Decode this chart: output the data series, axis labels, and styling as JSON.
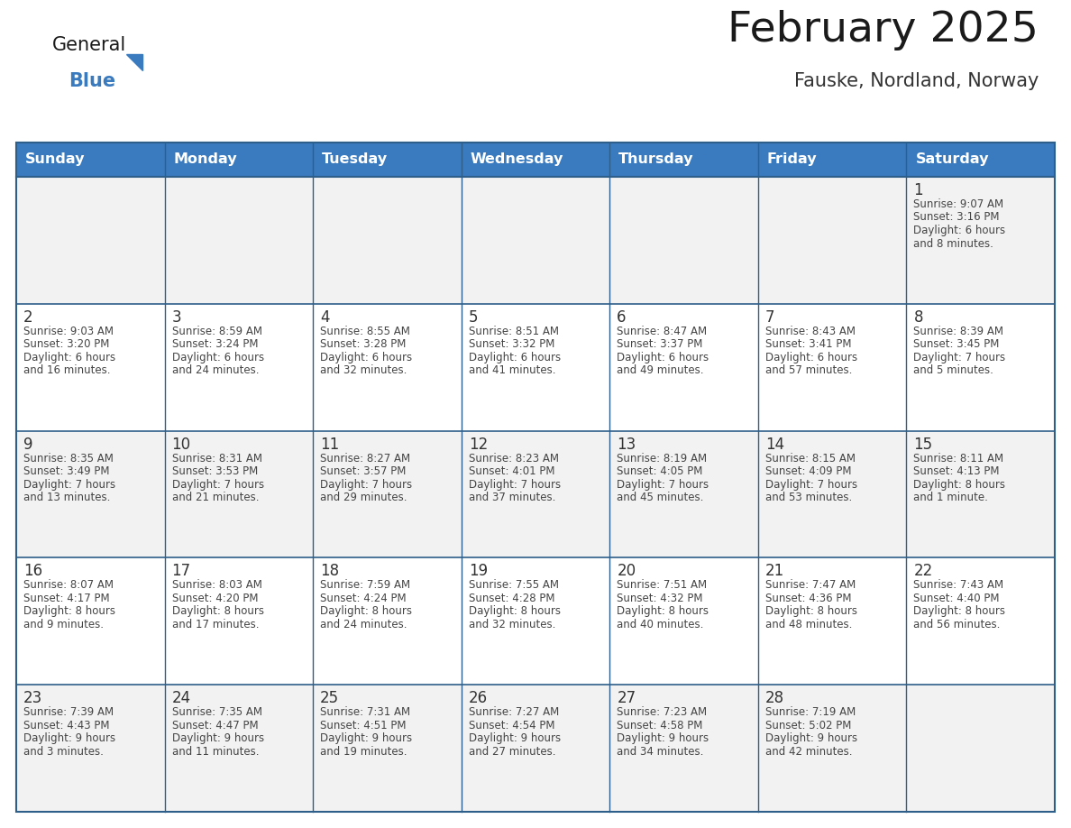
{
  "title": "February 2025",
  "subtitle": "Fauske, Nordland, Norway",
  "header_bg": "#3a7abf",
  "header_text": "#ffffff",
  "header_days": [
    "Sunday",
    "Monday",
    "Tuesday",
    "Wednesday",
    "Thursday",
    "Friday",
    "Saturday"
  ],
  "cell_bg_even": "#f2f2f2",
  "cell_bg_odd": "#ffffff",
  "border_color": "#2e5f8a",
  "day_number_color": "#333333",
  "info_text_color": "#444444",
  "title_color": "#1a1a1a",
  "subtitle_color": "#333333",
  "calendar": [
    [
      null,
      null,
      null,
      null,
      null,
      null,
      1
    ],
    [
      2,
      3,
      4,
      5,
      6,
      7,
      8
    ],
    [
      9,
      10,
      11,
      12,
      13,
      14,
      15
    ],
    [
      16,
      17,
      18,
      19,
      20,
      21,
      22
    ],
    [
      23,
      24,
      25,
      26,
      27,
      28,
      null
    ]
  ],
  "day_info": {
    "1": [
      "Sunrise: 9:07 AM",
      "Sunset: 3:16 PM",
      "Daylight: 6 hours",
      "and 8 minutes."
    ],
    "2": [
      "Sunrise: 9:03 AM",
      "Sunset: 3:20 PM",
      "Daylight: 6 hours",
      "and 16 minutes."
    ],
    "3": [
      "Sunrise: 8:59 AM",
      "Sunset: 3:24 PM",
      "Daylight: 6 hours",
      "and 24 minutes."
    ],
    "4": [
      "Sunrise: 8:55 AM",
      "Sunset: 3:28 PM",
      "Daylight: 6 hours",
      "and 32 minutes."
    ],
    "5": [
      "Sunrise: 8:51 AM",
      "Sunset: 3:32 PM",
      "Daylight: 6 hours",
      "and 41 minutes."
    ],
    "6": [
      "Sunrise: 8:47 AM",
      "Sunset: 3:37 PM",
      "Daylight: 6 hours",
      "and 49 minutes."
    ],
    "7": [
      "Sunrise: 8:43 AM",
      "Sunset: 3:41 PM",
      "Daylight: 6 hours",
      "and 57 minutes."
    ],
    "8": [
      "Sunrise: 8:39 AM",
      "Sunset: 3:45 PM",
      "Daylight: 7 hours",
      "and 5 minutes."
    ],
    "9": [
      "Sunrise: 8:35 AM",
      "Sunset: 3:49 PM",
      "Daylight: 7 hours",
      "and 13 minutes."
    ],
    "10": [
      "Sunrise: 8:31 AM",
      "Sunset: 3:53 PM",
      "Daylight: 7 hours",
      "and 21 minutes."
    ],
    "11": [
      "Sunrise: 8:27 AM",
      "Sunset: 3:57 PM",
      "Daylight: 7 hours",
      "and 29 minutes."
    ],
    "12": [
      "Sunrise: 8:23 AM",
      "Sunset: 4:01 PM",
      "Daylight: 7 hours",
      "and 37 minutes."
    ],
    "13": [
      "Sunrise: 8:19 AM",
      "Sunset: 4:05 PM",
      "Daylight: 7 hours",
      "and 45 minutes."
    ],
    "14": [
      "Sunrise: 8:15 AM",
      "Sunset: 4:09 PM",
      "Daylight: 7 hours",
      "and 53 minutes."
    ],
    "15": [
      "Sunrise: 8:11 AM",
      "Sunset: 4:13 PM",
      "Daylight: 8 hours",
      "and 1 minute."
    ],
    "16": [
      "Sunrise: 8:07 AM",
      "Sunset: 4:17 PM",
      "Daylight: 8 hours",
      "and 9 minutes."
    ],
    "17": [
      "Sunrise: 8:03 AM",
      "Sunset: 4:20 PM",
      "Daylight: 8 hours",
      "and 17 minutes."
    ],
    "18": [
      "Sunrise: 7:59 AM",
      "Sunset: 4:24 PM",
      "Daylight: 8 hours",
      "and 24 minutes."
    ],
    "19": [
      "Sunrise: 7:55 AM",
      "Sunset: 4:28 PM",
      "Daylight: 8 hours",
      "and 32 minutes."
    ],
    "20": [
      "Sunrise: 7:51 AM",
      "Sunset: 4:32 PM",
      "Daylight: 8 hours",
      "and 40 minutes."
    ],
    "21": [
      "Sunrise: 7:47 AM",
      "Sunset: 4:36 PM",
      "Daylight: 8 hours",
      "and 48 minutes."
    ],
    "22": [
      "Sunrise: 7:43 AM",
      "Sunset: 4:40 PM",
      "Daylight: 8 hours",
      "and 56 minutes."
    ],
    "23": [
      "Sunrise: 7:39 AM",
      "Sunset: 4:43 PM",
      "Daylight: 9 hours",
      "and 3 minutes."
    ],
    "24": [
      "Sunrise: 7:35 AM",
      "Sunset: 4:47 PM",
      "Daylight: 9 hours",
      "and 11 minutes."
    ],
    "25": [
      "Sunrise: 7:31 AM",
      "Sunset: 4:51 PM",
      "Daylight: 9 hours",
      "and 19 minutes."
    ],
    "26": [
      "Sunrise: 7:27 AM",
      "Sunset: 4:54 PM",
      "Daylight: 9 hours",
      "and 27 minutes."
    ],
    "27": [
      "Sunrise: 7:23 AM",
      "Sunset: 4:58 PM",
      "Daylight: 9 hours",
      "and 34 minutes."
    ],
    "28": [
      "Sunrise: 7:19 AM",
      "Sunset: 5:02 PM",
      "Daylight: 9 hours",
      "and 42 minutes."
    ]
  },
  "logo_general_color": "#1a1a1a",
  "logo_blue_color": "#3a7abf"
}
